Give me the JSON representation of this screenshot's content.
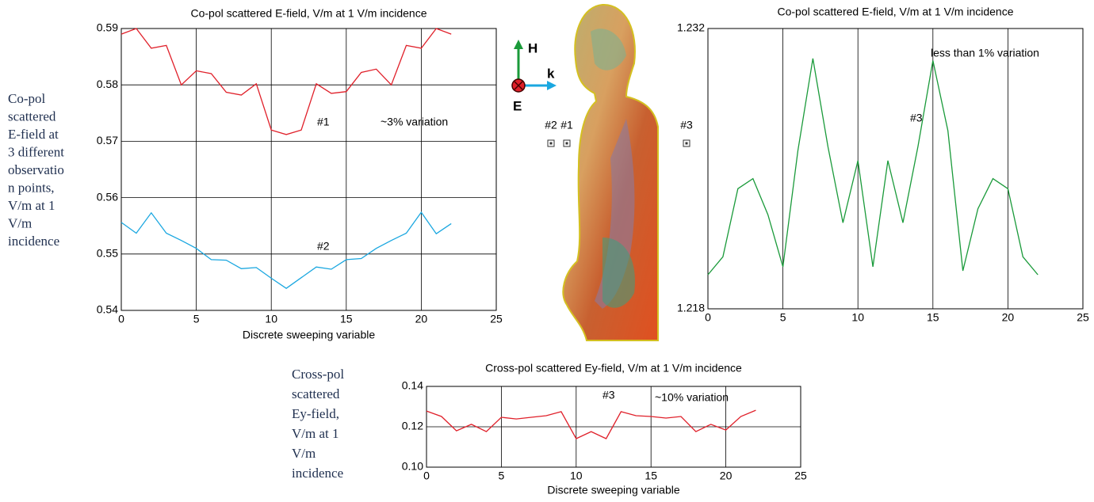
{
  "chart_data": [
    {
      "type": "line",
      "title": "Co-pol scattered E-field, V/m at 1 V/m incidence",
      "x_label": "Discrete sweeping variable",
      "x": [
        0,
        1,
        2,
        3,
        4,
        5,
        6,
        7,
        8,
        9,
        10,
        11,
        12,
        13,
        14,
        15,
        16,
        17,
        18,
        19,
        20,
        21,
        22
      ],
      "series": [
        {
          "name": "#1",
          "color": "#e0202a",
          "values": [
            0.589,
            0.59,
            0.5865,
            0.587,
            0.58,
            0.5825,
            0.582,
            0.5787,
            0.5782,
            0.5802,
            0.572,
            0.5712,
            0.572,
            0.5802,
            0.5785,
            0.5788,
            0.5822,
            0.5828,
            0.58,
            0.587,
            0.5865,
            0.59,
            0.589
          ]
        },
        {
          "name": "#2",
          "color": "#1aa7e0",
          "values": [
            0.5556,
            0.5537,
            0.5573,
            0.5537,
            0.5524,
            0.551,
            0.549,
            0.5489,
            0.5474,
            0.5476,
            0.5457,
            0.5439,
            0.5458,
            0.5477,
            0.5473,
            0.549,
            0.5492,
            0.551,
            0.5524,
            0.5537,
            0.5574,
            0.5536,
            0.5554
          ]
        }
      ],
      "annotations": [
        "~3% variation"
      ],
      "xlim": [
        0,
        25
      ],
      "xticks": [
        0,
        5,
        10,
        15,
        20,
        25
      ],
      "ylim": [
        0.54,
        0.59
      ],
      "yticks": [
        0.54,
        0.55,
        0.56,
        0.57,
        0.58,
        0.59
      ],
      "grid": "both"
    },
    {
      "type": "line",
      "title": "Co-pol scattered E-field, V/m at 1 V/m incidence",
      "x": [
        0,
        1,
        2,
        3,
        4,
        5,
        6,
        7,
        8,
        9,
        10,
        11,
        12,
        13,
        14,
        15,
        16,
        17,
        18,
        19,
        20,
        21,
        22
      ],
      "series": [
        {
          "name": "#3",
          "color": "#1a9a3a",
          "values": [
            1.2197,
            1.2206,
            1.224,
            1.2245,
            1.2227,
            1.2201,
            1.2259,
            1.2305,
            1.2261,
            1.2223,
            1.2254,
            1.2201,
            1.2254,
            1.2223,
            1.2261,
            1.2304,
            1.2269,
            1.2199,
            1.223,
            1.2245,
            1.224,
            1.2206,
            1.2197
          ]
        }
      ],
      "annotations": [
        "less than 1% variation"
      ],
      "xlim": [
        0,
        25
      ],
      "xticks": [
        0,
        5,
        10,
        15,
        20,
        25
      ],
      "ylim": [
        1.218,
        1.232
      ],
      "yticks": [
        1.218,
        1.232
      ],
      "grid": "x"
    },
    {
      "type": "line",
      "title": "Cross-pol scattered Ey-field, V/m at 1 V/m incidence",
      "x_label": "Discrete sweeping variable",
      "x": [
        0,
        1,
        2,
        3,
        4,
        5,
        6,
        7,
        8,
        9,
        10,
        11,
        12,
        13,
        14,
        15,
        16,
        17,
        18,
        19,
        20,
        21,
        22
      ],
      "series": [
        {
          "name": "#3",
          "color": "#e0202a",
          "values": [
            0.1278,
            0.1251,
            0.118,
            0.1212,
            0.1176,
            0.1247,
            0.1239,
            0.1247,
            0.1255,
            0.1275,
            0.1141,
            0.1176,
            0.1141,
            0.1275,
            0.1255,
            0.1251,
            0.1243,
            0.1251,
            0.1176,
            0.1212,
            0.1184,
            0.1251,
            0.1282
          ]
        }
      ],
      "annotations": [
        "~10% variation"
      ],
      "xlim": [
        0,
        25
      ],
      "xticks": [
        0,
        5,
        10,
        15,
        20,
        25
      ],
      "ylim": [
        0.1,
        0.14
      ],
      "yticks": [
        {
          "value": 0.1,
          "label": "0.10"
        },
        0.12,
        0.14
      ],
      "grid": "both"
    }
  ],
  "side_labels": [
    [
      "Co-pol",
      "scattered",
      "E-field at",
      "3 different",
      "observatio",
      "n points,",
      "V/m at 1",
      "V/m",
      "incidence"
    ],
    [
      "Cross-pol",
      "scattered",
      "Ey-field,",
      "V/m at 1",
      "V/m",
      "incidence"
    ]
  ],
  "figure": {
    "axes": [
      "H",
      "k",
      "E"
    ],
    "points": [
      "#2",
      "#1",
      "#3"
    ]
  }
}
